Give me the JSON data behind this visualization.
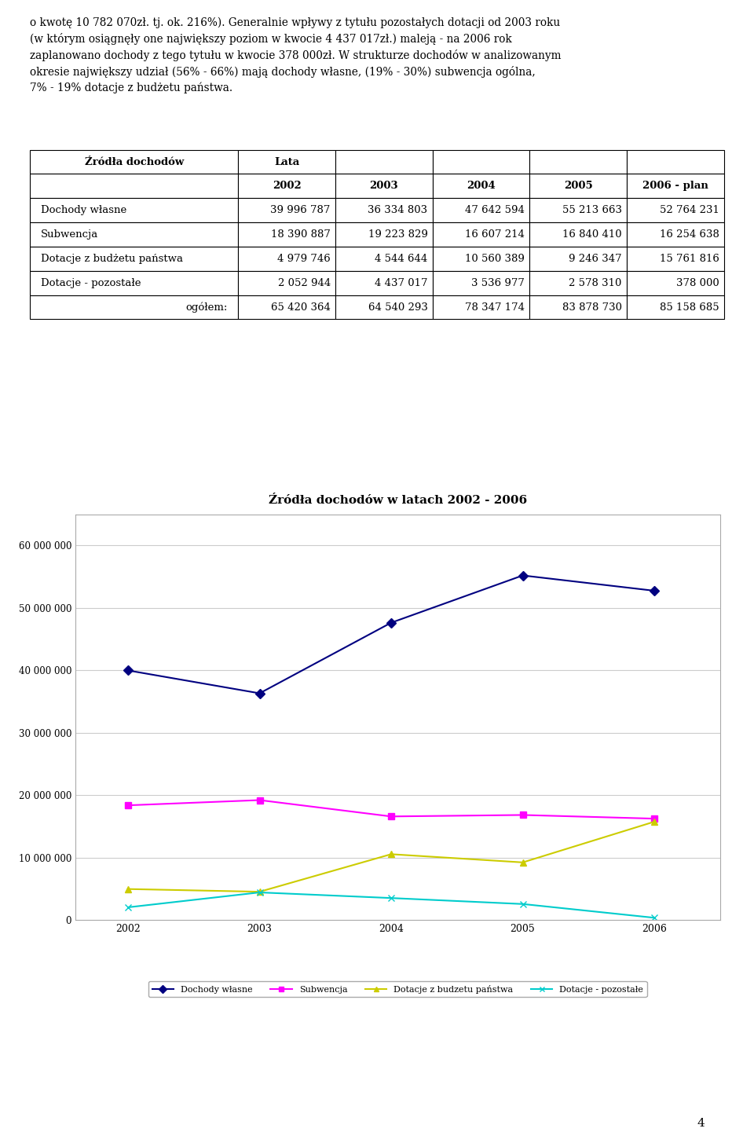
{
  "text_block": "o kwote 10 782 070zl. tj. ok. 216%). Generalnie wplywy z tytulu pozostalych dotacji od 2003 roku (w ktorym osiagnely one najwiekszy poziom w kwocie 4 437 017zl.) maleja - na 2006 rok zaplanowano dochody z tego tytulu w kwocie 378 000zl. W strukturze dochodow w analizowanym okresie najwiekszy udzial (56% - 66%) maja dochody wlasne, (19% - 30%) subwencja ogolna, 7% - 19% dotacje z budzetu panstwa.",
  "text_block_display": "o kwotę 10 782 070zł. tj. ok. 216%). Generalnie wpływy z tytułu pozostałych dotacji od 2003 roku\n(w którym osiągnęły one największy poziom w kwocie 4 437 017zł.) maleją - na 2006 rok\nzaplanowano dochody z tego tytułu w kwocie 378 000zł. W strukturze dochodów w analizowanym\nokresie największy udział (56% - 66%) mają dochody własne, (19% - 30%) subwencja ogólna,\n7% - 19% dotacje z budżetu państwa.",
  "table": {
    "header1_col0": "Źródła dochodów",
    "header1_col1": "Lata",
    "header2": [
      "",
      "2002",
      "2003",
      "2004",
      "2005",
      "2006 - plan"
    ],
    "rows": [
      [
        "Dochody własne",
        "39 996 787",
        "36 334 803",
        "47 642 594",
        "55 213 663",
        "52 764 231"
      ],
      [
        "Subwencja",
        "18 390 887",
        "19 223 829",
        "16 607 214",
        "16 840 410",
        "16 254 638"
      ],
      [
        "Dotacje z budżetu państwa",
        "4 979 746",
        "4 544 644",
        "10 560 389",
        "9 246 347",
        "15 761 816"
      ],
      [
        "Dotacje - pozostałe",
        "2 052 944",
        "4 437 017",
        "3 536 977",
        "2 578 310",
        "378 000"
      ],
      [
        "ogółem:",
        "65 420 364",
        "64 540 293",
        "78 347 174",
        "83 878 730",
        "85 158 685"
      ]
    ]
  },
  "chart": {
    "title": "Źródła dochodów w latach 2002 - 2006",
    "years": [
      2002,
      2003,
      2004,
      2005,
      2006
    ],
    "series": {
      "Dochody własne": [
        39996787,
        36334803,
        47642594,
        55213663,
        52764231
      ],
      "Subwencja": [
        18390887,
        19223829,
        16607214,
        16840410,
        16254638
      ],
      "Dotacje z budzetu państwa": [
        4979746,
        4544644,
        10560389,
        9246347,
        15761816
      ],
      "Dotacje - pozostałe": [
        2052944,
        4437017,
        3536977,
        2578310,
        378000
      ]
    },
    "colors": {
      "Dochody własne": "#000080",
      "Subwencja": "#FF00FF",
      "Dotacje z budzetu państwa": "#CCCC00",
      "Dotacje - pozostałe": "#00CCCC"
    },
    "markers": {
      "Dochody własne": "D",
      "Subwencja": "s",
      "Dotacje z budzetu państwa": "^",
      "Dotacje - pozostałe": "x"
    },
    "legend_labels": [
      "Dochody własne",
      "Subwencja",
      "Dotacje z budzetu państwa",
      "Dotacje - pozostałe"
    ],
    "legend_display": [
      "Dochody własne",
      "Subwencja",
      "Dotacje z budzetu państwa",
      "Dotacje - pozostałe"
    ],
    "ylim": [
      0,
      65000000
    ],
    "yticks": [
      0,
      10000000,
      20000000,
      30000000,
      40000000,
      50000000,
      60000000
    ],
    "ytick_labels": [
      "0",
      "10 000 000",
      "20 000 000",
      "30 000 000",
      "40 000 000",
      "50 000 000",
      "60 000 000"
    ]
  },
  "page_number": "4",
  "background_color": "#ffffff",
  "grid_color": "#cccccc"
}
